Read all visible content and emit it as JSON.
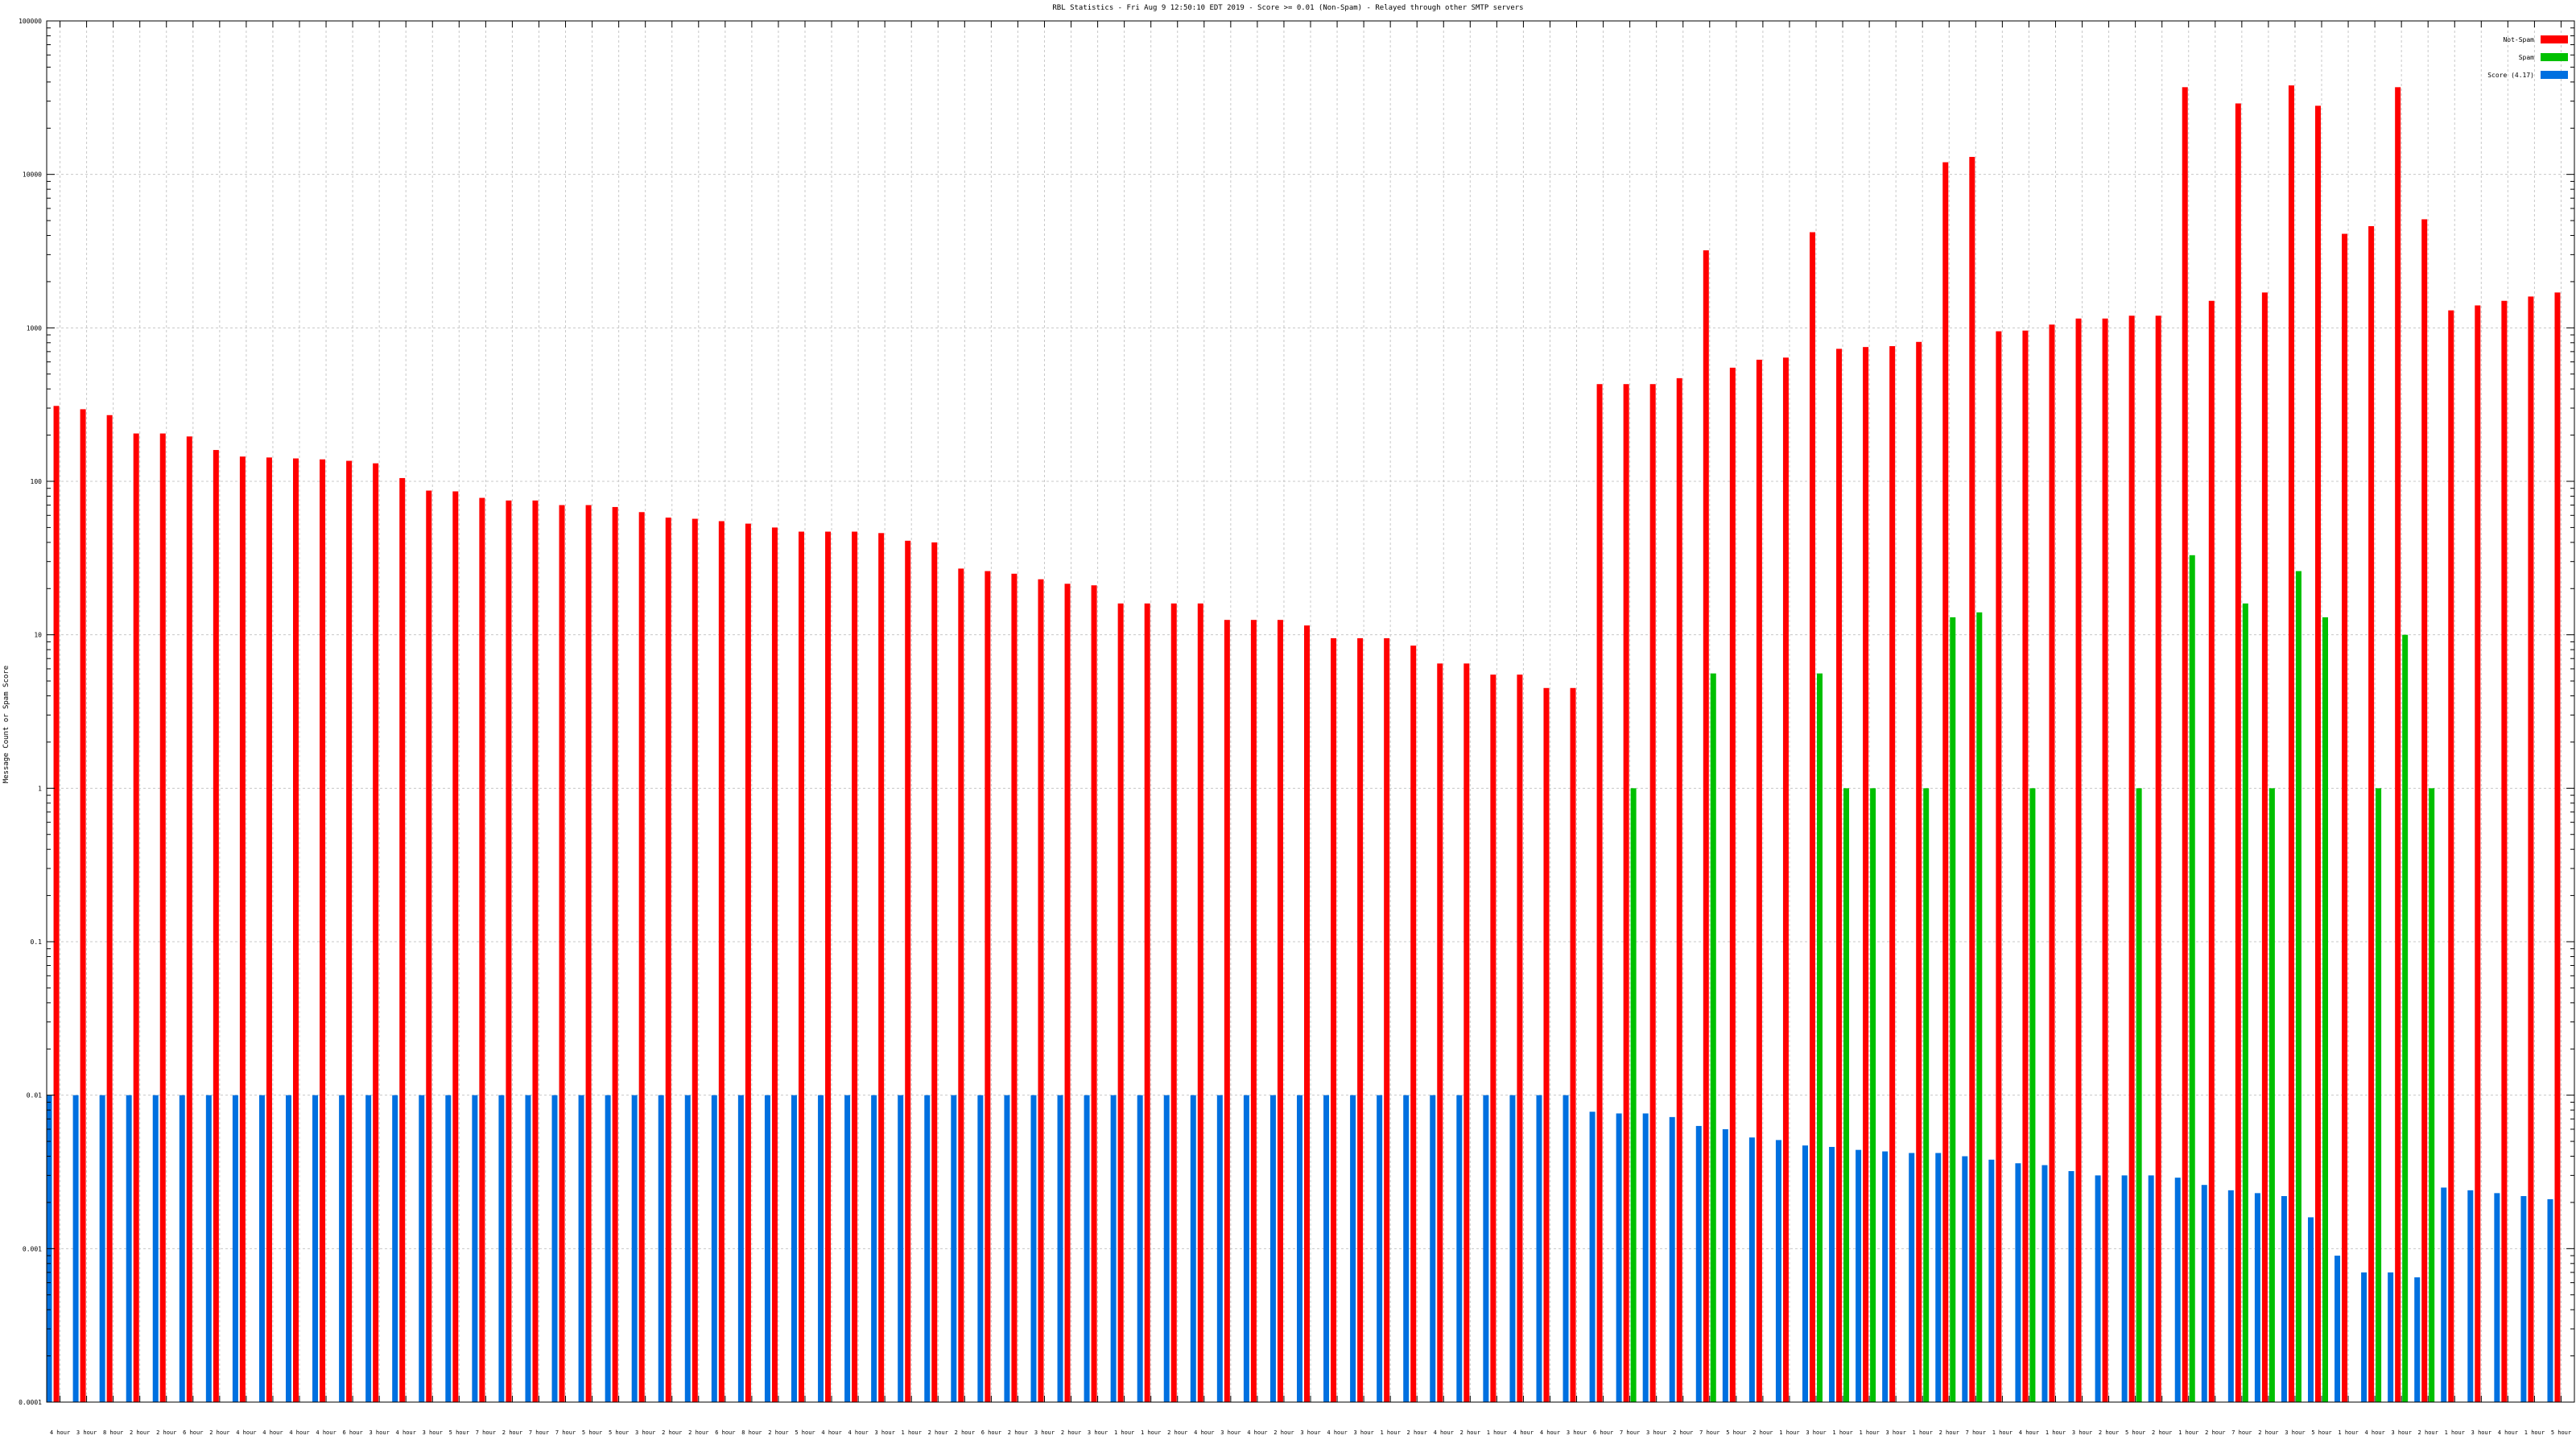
{
  "chart_data": {
    "type": "bar",
    "title": "RBL Statistics - Fri Aug  9 12:50:10 EDT 2019 - Score >= 0.01 (Non-Spam) - Relayed through other SMTP servers",
    "ylabel": "Message Count or Spam Score",
    "xlabel": "",
    "yscale": "log",
    "ylim": [
      0.0001,
      100000
    ],
    "yticks": [
      0.0001,
      0.001,
      0.01,
      0.1,
      1,
      10,
      100,
      1000,
      10000,
      100000
    ],
    "ytick_labels": [
      "0.0001",
      "0.001",
      "0.01",
      "0.1",
      "1",
      "10",
      "100",
      "1000",
      "10000",
      "100000"
    ],
    "grid": true,
    "legend_position": "top-right",
    "categories": [
      "4 hour",
      "3 hour",
      "8 hour",
      "2 hour",
      "2 hour",
      "6 hour",
      "2 hour",
      "4 hour",
      "4 hour",
      "4 hour",
      "4 hour",
      "6 hour",
      "3 hour",
      "4 hour",
      "3 hour",
      "5 hour",
      "7 hour",
      "2 hour",
      "7 hour",
      "7 hour",
      "5 hour",
      "5 hour",
      "3 hour",
      "2 hour",
      "2 hour",
      "6 hour",
      "8 hour",
      "2 hour",
      "5 hour",
      "4 hour",
      "4 hour",
      "3 hour",
      "1 hour",
      "2 hour",
      "2 hour",
      "6 hour",
      "2 hour",
      "3 hour",
      "2 hour",
      "3 hour",
      "1 hour",
      "1 hour",
      "2 hour",
      "4 hour",
      "3 hour",
      "4 hour",
      "2 hour",
      "3 hour",
      "4 hour",
      "3 hour",
      "1 hour",
      "2 hour",
      "4 hour",
      "2 hour",
      "1 hour",
      "4 hour",
      "4 hour",
      "3 hour",
      "6 hour",
      "7 hour",
      "3 hour",
      "2 hour",
      "7 hour",
      "5 hour",
      "2 hour",
      "1 hour",
      "3 hour",
      "1 hour",
      "1 hour",
      "3 hour",
      "1 hour",
      "2 hour",
      "7 hour",
      "1 hour",
      "4 hour",
      "1 hour",
      "3 hour",
      "2 hour",
      "5 hour",
      "2 hour",
      "1 hour",
      "2 hour",
      "7 hour",
      "2 hour",
      "3 hour",
      "5 hour",
      "1 hour",
      "4 hour",
      "3 hour",
      "2 hour",
      "1 hour",
      "3 hour",
      "4 hour",
      "1 hour",
      "5 hour"
    ],
    "series": [
      {
        "name": "Not-Spam",
        "color": "#ff0000",
        "values": [
          310,
          295,
          270,
          205,
          205,
          196,
          160,
          145,
          143,
          141,
          139,
          136,
          131,
          105,
          87,
          86,
          78,
          75,
          75,
          70,
          70,
          68,
          63,
          58,
          57,
          55,
          53,
          50,
          47,
          47,
          47,
          46,
          41,
          40,
          27,
          26,
          25,
          23,
          21.5,
          21,
          16,
          16,
          16,
          16,
          12.5,
          12.5,
          12.5,
          11.5,
          9.5,
          9.5,
          9.5,
          8.5,
          6.5,
          6.5,
          5.5,
          5.5,
          4.5,
          4.5,
          430,
          430,
          430,
          470,
          3200,
          550,
          620,
          640,
          4200,
          730,
          750,
          760,
          810,
          12000,
          13000,
          950,
          960,
          1050,
          1150,
          1150,
          1200,
          1200,
          37000,
          1500,
          29000,
          1700,
          38000,
          28000,
          4100,
          4600,
          37000,
          5100,
          1300,
          1400,
          1500,
          1600,
          1700
        ]
      },
      {
        "name": "Spam",
        "color": "#00c000",
        "values": [
          0,
          0,
          0,
          0,
          0,
          0,
          0,
          0,
          0,
          0,
          0,
          0,
          0,
          0,
          0,
          0,
          0,
          0,
          0,
          0,
          0,
          0,
          0,
          0,
          0,
          0,
          0,
          0,
          0,
          0,
          0,
          0,
          0,
          0,
          0,
          0,
          0,
          0,
          0,
          0,
          0,
          0,
          0,
          0,
          0,
          0,
          0,
          0,
          0,
          0,
          0,
          0,
          0,
          0,
          0,
          0,
          0,
          0,
          0,
          1,
          0,
          0,
          5.6,
          0,
          0,
          0,
          5.6,
          1,
          1,
          0,
          1,
          13,
          14,
          0,
          1,
          0,
          0,
          0,
          1,
          0,
          33,
          0,
          16,
          1,
          26,
          13,
          0,
          1,
          10,
          1,
          0,
          0,
          0,
          0,
          0
        ]
      },
      {
        "name": "Score (4.17)",
        "color": "#0070e0",
        "values": [
          0.01,
          0.01,
          0.01,
          0.01,
          0.01,
          0.01,
          0.01,
          0.01,
          0.01,
          0.01,
          0.01,
          0.01,
          0.01,
          0.01,
          0.01,
          0.01,
          0.01,
          0.01,
          0.01,
          0.01,
          0.01,
          0.01,
          0.01,
          0.01,
          0.01,
          0.01,
          0.01,
          0.01,
          0.01,
          0.01,
          0.01,
          0.01,
          0.01,
          0.01,
          0.01,
          0.01,
          0.01,
          0.01,
          0.01,
          0.01,
          0.01,
          0.01,
          0.01,
          0.01,
          0.01,
          0.01,
          0.01,
          0.01,
          0.01,
          0.01,
          0.01,
          0.01,
          0.01,
          0.01,
          0.01,
          0.01,
          0.01,
          0.01,
          0.0078,
          0.0076,
          0.0076,
          0.0072,
          0.0063,
          0.006,
          0.0053,
          0.0051,
          0.0047,
          0.0046,
          0.0044,
          0.0043,
          0.0042,
          0.0042,
          0.004,
          0.0038,
          0.0036,
          0.0035,
          0.0032,
          0.003,
          0.003,
          0.003,
          0.0029,
          0.0026,
          0.0024,
          0.0023,
          0.0022,
          0.0016,
          0.0009,
          0.0007,
          0.0007,
          0.00065,
          0.0025,
          0.0024,
          0.0023,
          0.0022,
          0.0021
        ]
      }
    ]
  }
}
